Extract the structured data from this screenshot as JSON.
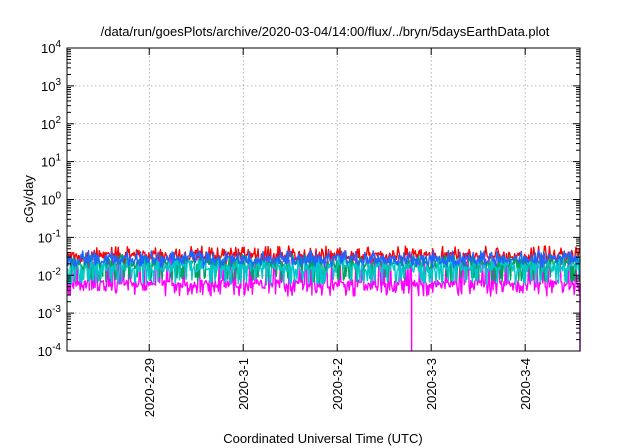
{
  "chart_data": {
    "type": "line",
    "title": "/data/run/goesPlots/archive/2020-03-04/14:00/flux/../bryn/5daysEarthData.plot",
    "xlabel": "Coordinated Universal Time (UTC)",
    "ylabel": "cGy/day",
    "yscale": "log",
    "ylim": [
      0.0001,
      10000
    ],
    "yticks": [
      {
        "value": 0.0001,
        "base": "10",
        "exp": "-4"
      },
      {
        "value": 0.001,
        "base": "10",
        "exp": "-3"
      },
      {
        "value": 0.01,
        "base": "10",
        "exp": "-2"
      },
      {
        "value": 0.1,
        "base": "10",
        "exp": "-1"
      },
      {
        "value": 1,
        "base": "10",
        "exp": "0"
      },
      {
        "value": 10,
        "base": "10",
        "exp": "1"
      },
      {
        "value": 100,
        "base": "10",
        "exp": "2"
      },
      {
        "value": 1000,
        "base": "10",
        "exp": "3"
      },
      {
        "value": 10000,
        "base": "10",
        "exp": "4"
      }
    ],
    "xlim": [
      "2020-02-28 03:00",
      "2020-03-04 14:00"
    ],
    "xticks": [
      {
        "value": "2020-02-29 00:00",
        "label": "2020-2-29"
      },
      {
        "value": "2020-03-01 00:00",
        "label": "2020-3-1"
      },
      {
        "value": "2020-03-02 00:00",
        "label": "2020-3-2"
      },
      {
        "value": "2020-03-03 00:00",
        "label": "2020-3-3"
      },
      {
        "value": "2020-03-04 00:00",
        "label": "2020-3-4"
      }
    ],
    "grid": true,
    "series": [
      {
        "color": "#ff0000",
        "base": 0.033,
        "low": 0.024,
        "high": 0.06
      },
      {
        "color": "#00a060",
        "base": 0.02,
        "low": 0.008,
        "high": 0.035
      },
      {
        "color": "#00c8c8",
        "base": 0.016,
        "low": 0.007,
        "high": 0.03
      },
      {
        "color": "#1e64ff",
        "base": 0.027,
        "low": 0.02,
        "high": 0.045
      },
      {
        "color": "#ff00ff",
        "base": 0.006,
        "low": 0.0035,
        "high": 0.03,
        "dips": [
          {
            "x": "2020-03-02 19:00",
            "y": 0.0001
          },
          {
            "x": "2020-03-04 14:00",
            "y": 0.0001
          }
        ]
      }
    ]
  }
}
